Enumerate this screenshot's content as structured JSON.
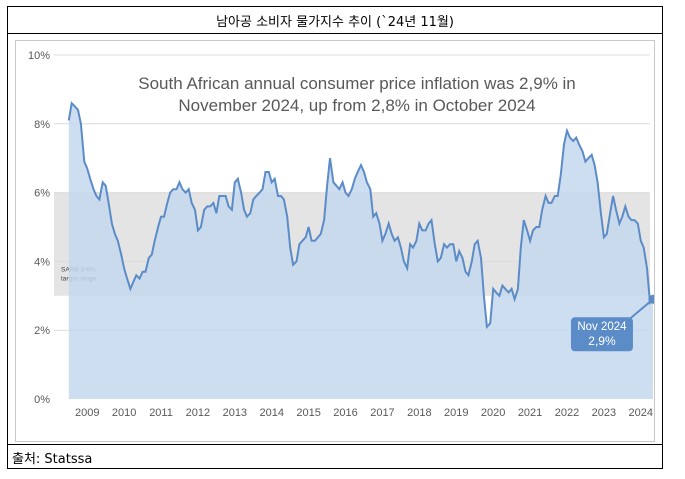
{
  "header": {
    "title": "남아공 소비자 물가지수 추이 (`24년 11월)"
  },
  "footer": {
    "source": "출처: Statssa"
  },
  "colors": {
    "line": "#5b8cc8",
    "area": "#c5d8ee",
    "band": "#e4e4e4",
    "callout": "#5b8cc8",
    "grid": "#dcdcdc",
    "tick_text": "#595959",
    "annotation_text": "#595959"
  },
  "chart_data": {
    "type": "area",
    "title": "South African annual consumer price inflation was 2,9% in November 2024, up from 2,8% in October 2024",
    "xlabel": "",
    "ylabel": "",
    "ylim": [
      0,
      10
    ],
    "xlim": [
      2008.6,
      2024.75
    ],
    "yticks": [
      "0%",
      "2%",
      "4%",
      "6%",
      "8%",
      "10%"
    ],
    "xticks": [
      "2009",
      "2010",
      "2011",
      "2012",
      "2013",
      "2014",
      "2015",
      "2016",
      "2017",
      "2018",
      "2019",
      "2020",
      "2021",
      "2022",
      "2023",
      "2024"
    ],
    "grid": true,
    "target_band": {
      "label": "SARB 3-6% target range",
      "from": 3,
      "to": 6
    },
    "callout": {
      "label": "Nov 2024",
      "value_label": "2,9%",
      "x": 2024.83,
      "y": 2.9
    },
    "series": [
      {
        "values": [
          [
            2009.0,
            8.1
          ],
          [
            2009.08,
            8.6
          ],
          [
            2009.17,
            8.5
          ],
          [
            2009.25,
            8.4
          ],
          [
            2009.33,
            8.0
          ],
          [
            2009.42,
            6.9
          ],
          [
            2009.5,
            6.7
          ],
          [
            2009.58,
            6.4
          ],
          [
            2009.67,
            6.1
          ],
          [
            2009.75,
            5.9
          ],
          [
            2009.83,
            5.8
          ],
          [
            2009.92,
            6.3
          ],
          [
            2010.0,
            6.2
          ],
          [
            2010.08,
            5.7
          ],
          [
            2010.17,
            5.1
          ],
          [
            2010.25,
            4.8
          ],
          [
            2010.33,
            4.6
          ],
          [
            2010.42,
            4.2
          ],
          [
            2010.5,
            3.8
          ],
          [
            2010.58,
            3.5
          ],
          [
            2010.67,
            3.2
          ],
          [
            2010.75,
            3.4
          ],
          [
            2010.83,
            3.6
          ],
          [
            2010.92,
            3.5
          ],
          [
            2011.0,
            3.7
          ],
          [
            2011.08,
            3.7
          ],
          [
            2011.17,
            4.1
          ],
          [
            2011.25,
            4.2
          ],
          [
            2011.33,
            4.6
          ],
          [
            2011.42,
            5.0
          ],
          [
            2011.5,
            5.3
          ],
          [
            2011.58,
            5.3
          ],
          [
            2011.67,
            5.7
          ],
          [
            2011.75,
            6.0
          ],
          [
            2011.83,
            6.1
          ],
          [
            2011.92,
            6.1
          ],
          [
            2012.0,
            6.3
          ],
          [
            2012.08,
            6.1
          ],
          [
            2012.17,
            6.0
          ],
          [
            2012.25,
            6.1
          ],
          [
            2012.33,
            5.7
          ],
          [
            2012.42,
            5.5
          ],
          [
            2012.5,
            4.9
          ],
          [
            2012.58,
            5.0
          ],
          [
            2012.67,
            5.5
          ],
          [
            2012.75,
            5.6
          ],
          [
            2012.83,
            5.6
          ],
          [
            2012.92,
            5.7
          ],
          [
            2013.0,
            5.4
          ],
          [
            2013.08,
            5.9
          ],
          [
            2013.17,
            5.9
          ],
          [
            2013.25,
            5.9
          ],
          [
            2013.33,
            5.6
          ],
          [
            2013.42,
            5.5
          ],
          [
            2013.5,
            6.3
          ],
          [
            2013.58,
            6.4
          ],
          [
            2013.67,
            6.0
          ],
          [
            2013.75,
            5.5
          ],
          [
            2013.83,
            5.3
          ],
          [
            2013.92,
            5.4
          ],
          [
            2014.0,
            5.8
          ],
          [
            2014.08,
            5.9
          ],
          [
            2014.17,
            6.0
          ],
          [
            2014.25,
            6.1
          ],
          [
            2014.33,
            6.6
          ],
          [
            2014.42,
            6.6
          ],
          [
            2014.5,
            6.3
          ],
          [
            2014.58,
            6.4
          ],
          [
            2014.67,
            5.9
          ],
          [
            2014.75,
            5.9
          ],
          [
            2014.83,
            5.8
          ],
          [
            2014.92,
            5.3
          ],
          [
            2015.0,
            4.4
          ],
          [
            2015.08,
            3.9
          ],
          [
            2015.17,
            4.0
          ],
          [
            2015.25,
            4.5
          ],
          [
            2015.33,
            4.6
          ],
          [
            2015.42,
            4.7
          ],
          [
            2015.5,
            5.0
          ],
          [
            2015.58,
            4.6
          ],
          [
            2015.67,
            4.6
          ],
          [
            2015.75,
            4.7
          ],
          [
            2015.83,
            4.8
          ],
          [
            2015.92,
            5.2
          ],
          [
            2016.0,
            6.2
          ],
          [
            2016.08,
            7.0
          ],
          [
            2016.17,
            6.3
          ],
          [
            2016.25,
            6.2
          ],
          [
            2016.33,
            6.1
          ],
          [
            2016.42,
            6.3
          ],
          [
            2016.5,
            6.0
          ],
          [
            2016.58,
            5.9
          ],
          [
            2016.67,
            6.1
          ],
          [
            2016.75,
            6.4
          ],
          [
            2016.83,
            6.6
          ],
          [
            2016.92,
            6.8
          ],
          [
            2017.0,
            6.6
          ],
          [
            2017.08,
            6.3
          ],
          [
            2017.17,
            6.1
          ],
          [
            2017.25,
            5.3
          ],
          [
            2017.33,
            5.4
          ],
          [
            2017.42,
            5.1
          ],
          [
            2017.5,
            4.6
          ],
          [
            2017.58,
            4.8
          ],
          [
            2017.67,
            5.1
          ],
          [
            2017.75,
            4.8
          ],
          [
            2017.83,
            4.6
          ],
          [
            2017.92,
            4.7
          ],
          [
            2018.0,
            4.4
          ],
          [
            2018.08,
            4.0
          ],
          [
            2018.17,
            3.8
          ],
          [
            2018.25,
            4.5
          ],
          [
            2018.33,
            4.4
          ],
          [
            2018.42,
            4.6
          ],
          [
            2018.5,
            5.1
          ],
          [
            2018.58,
            4.9
          ],
          [
            2018.67,
            4.9
          ],
          [
            2018.75,
            5.1
          ],
          [
            2018.83,
            5.2
          ],
          [
            2018.92,
            4.5
          ],
          [
            2019.0,
            4.0
          ],
          [
            2019.08,
            4.1
          ],
          [
            2019.17,
            4.5
          ],
          [
            2019.25,
            4.4
          ],
          [
            2019.33,
            4.5
          ],
          [
            2019.42,
            4.5
          ],
          [
            2019.5,
            4.0
          ],
          [
            2019.58,
            4.3
          ],
          [
            2019.67,
            4.1
          ],
          [
            2019.75,
            3.7
          ],
          [
            2019.83,
            3.6
          ],
          [
            2019.92,
            4.0
          ],
          [
            2020.0,
            4.5
          ],
          [
            2020.08,
            4.6
          ],
          [
            2020.17,
            4.1
          ],
          [
            2020.25,
            3.0
          ],
          [
            2020.33,
            2.1
          ],
          [
            2020.42,
            2.2
          ],
          [
            2020.5,
            3.2
          ],
          [
            2020.58,
            3.1
          ],
          [
            2020.67,
            3.0
          ],
          [
            2020.75,
            3.3
          ],
          [
            2020.83,
            3.2
          ],
          [
            2020.92,
            3.1
          ],
          [
            2021.0,
            3.2
          ],
          [
            2021.08,
            2.9
          ],
          [
            2021.17,
            3.2
          ],
          [
            2021.25,
            4.4
          ],
          [
            2021.33,
            5.2
          ],
          [
            2021.42,
            4.9
          ],
          [
            2021.5,
            4.6
          ],
          [
            2021.58,
            4.9
          ],
          [
            2021.67,
            5.0
          ],
          [
            2021.75,
            5.0
          ],
          [
            2021.83,
            5.5
          ],
          [
            2021.92,
            5.9
          ],
          [
            2022.0,
            5.7
          ],
          [
            2022.08,
            5.7
          ],
          [
            2022.17,
            5.9
          ],
          [
            2022.25,
            5.9
          ],
          [
            2022.33,
            6.5
          ],
          [
            2022.42,
            7.4
          ],
          [
            2022.5,
            7.8
          ],
          [
            2022.58,
            7.6
          ],
          [
            2022.67,
            7.5
          ],
          [
            2022.75,
            7.6
          ],
          [
            2022.83,
            7.4
          ],
          [
            2022.92,
            7.2
          ],
          [
            2023.0,
            6.9
          ],
          [
            2023.08,
            7.0
          ],
          [
            2023.17,
            7.1
          ],
          [
            2023.25,
            6.8
          ],
          [
            2023.33,
            6.3
          ],
          [
            2023.42,
            5.4
          ],
          [
            2023.5,
            4.7
          ],
          [
            2023.58,
            4.8
          ],
          [
            2023.67,
            5.4
          ],
          [
            2023.75,
            5.9
          ],
          [
            2023.83,
            5.5
          ],
          [
            2023.92,
            5.1
          ],
          [
            2024.0,
            5.3
          ],
          [
            2024.08,
            5.6
          ],
          [
            2024.17,
            5.3
          ],
          [
            2024.25,
            5.2
          ],
          [
            2024.33,
            5.2
          ],
          [
            2024.42,
            5.1
          ],
          [
            2024.5,
            4.6
          ],
          [
            2024.58,
            4.4
          ],
          [
            2024.67,
            3.8
          ],
          [
            2024.75,
            2.8
          ],
          [
            2024.83,
            2.9
          ]
        ]
      }
    ]
  }
}
